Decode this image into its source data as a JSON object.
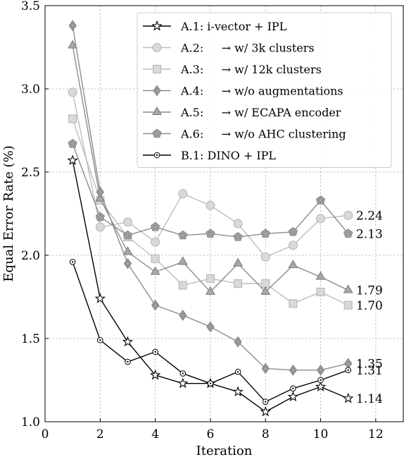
{
  "chart_data": {
    "type": "line",
    "xlabel": "Iteration",
    "ylabel": "Equal Error Rate (%)",
    "xlim": [
      0,
      13
    ],
    "ylim": [
      1.0,
      3.5
    ],
    "xticks": [
      0,
      2,
      4,
      6,
      8,
      10,
      12
    ],
    "yticks": [
      1.0,
      1.5,
      2.0,
      2.5,
      3.0,
      3.5
    ],
    "grid": true,
    "legend_position": "top-right",
    "series": [
      {
        "name": "A.1: i-vector + IPL",
        "marker": "star",
        "color": "#000000",
        "x": [
          1,
          2,
          3,
          4,
          5,
          6,
          7,
          8,
          9,
          10,
          11
        ],
        "y": [
          2.57,
          1.74,
          1.48,
          1.28,
          1.23,
          1.23,
          1.18,
          1.06,
          1.15,
          1.21,
          1.14
        ]
      },
      {
        "name": "A.2:     → w/ 3k clusters",
        "marker": "circle",
        "color": "#bdbdbd",
        "x": [
          1,
          2,
          3,
          4,
          5,
          6,
          7,
          8,
          9,
          10,
          11
        ],
        "y": [
          2.98,
          2.17,
          2.2,
          2.08,
          2.37,
          2.3,
          2.19,
          1.99,
          2.06,
          2.22,
          2.24
        ]
      },
      {
        "name": "A.3:     → w/ 12k clusters",
        "marker": "square",
        "color": "#bdbdbd",
        "x": [
          1,
          2,
          3,
          4,
          5,
          6,
          7,
          8,
          9,
          10,
          11
        ],
        "y": [
          2.82,
          2.33,
          2.11,
          1.98,
          1.82,
          1.86,
          1.83,
          1.83,
          1.71,
          1.78,
          1.7
        ]
      },
      {
        "name": "A.4:     → w/o augmentations",
        "marker": "diamond",
        "color": "#8c8c8c",
        "x": [
          1,
          2,
          3,
          4,
          5,
          6,
          7,
          8,
          9,
          10,
          11
        ],
        "y": [
          3.38,
          2.38,
          1.95,
          1.7,
          1.64,
          1.57,
          1.48,
          1.32,
          1.31,
          1.31,
          1.35
        ]
      },
      {
        "name": "A.5:     → w/ ECAPA encoder",
        "marker": "triangle",
        "color": "#8c8c8c",
        "x": [
          1,
          2,
          3,
          4,
          5,
          6,
          7,
          8,
          9,
          10,
          11
        ],
        "y": [
          3.26,
          2.34,
          2.02,
          1.9,
          1.96,
          1.78,
          1.95,
          1.78,
          1.94,
          1.87,
          1.79
        ]
      },
      {
        "name": "A.6:     → w/o AHC clustering",
        "marker": "pentagon",
        "color": "#8c8c8c",
        "x": [
          1,
          2,
          3,
          4,
          5,
          6,
          7,
          8,
          9,
          10,
          11
        ],
        "y": [
          2.67,
          2.23,
          2.12,
          2.17,
          2.12,
          2.13,
          2.11,
          2.13,
          2.14,
          2.33,
          2.13
        ]
      },
      {
        "name": "B.1: DINO + IPL",
        "marker": "dotcircle",
        "color": "#000000",
        "x": [
          1,
          2,
          3,
          4,
          5,
          6,
          7,
          8,
          9,
          10,
          11
        ],
        "y": [
          1.96,
          1.49,
          1.36,
          1.42,
          1.29,
          1.23,
          1.3,
          1.12,
          1.2,
          1.25,
          1.31
        ]
      }
    ],
    "annotations": [
      {
        "text": "2.24",
        "y": 2.24
      },
      {
        "text": "2.13",
        "y": 2.13
      },
      {
        "text": "1.79",
        "y": 1.79
      },
      {
        "text": "1.70",
        "y": 1.7
      },
      {
        "text": "1.35",
        "y": 1.35
      },
      {
        "text": "1.31",
        "y": 1.31
      },
      {
        "text": "1.14",
        "y": 1.14
      }
    ]
  }
}
